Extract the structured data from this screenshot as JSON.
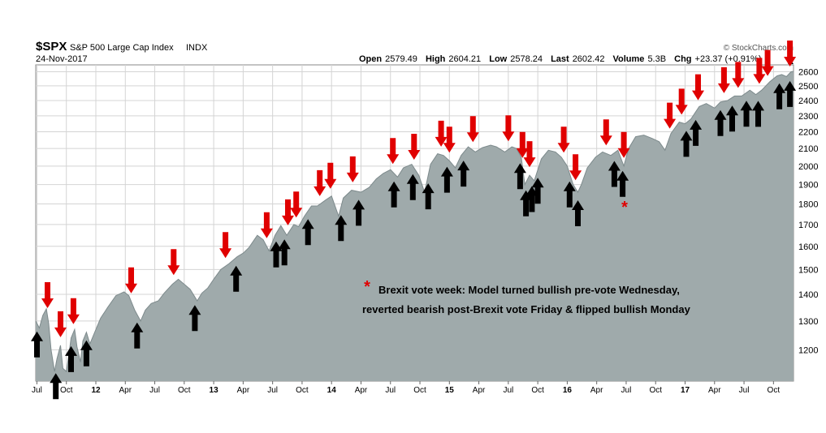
{
  "header": {
    "symbol": "$SPX",
    "name": "S&P 500 Large Cap Index",
    "exchange": "INDX",
    "date": "24-Nov-2017",
    "brand": "© StockCharts.com",
    "quote": [
      {
        "label": "Open",
        "value": "2579.49"
      },
      {
        "label": "High",
        "value": "2604.21"
      },
      {
        "label": "Low",
        "value": "2578.24"
      },
      {
        "label": "Last",
        "value": "2602.42"
      },
      {
        "label": "Volume",
        "value": "5.3B"
      },
      {
        "label": "Chg",
        "value": "+23.37 (+0.91%)"
      }
    ]
  },
  "annotation": {
    "marker": "*",
    "line1": "Brexit vote week: Model turned bullish pre-vote Wednesday,",
    "line2": "reverted bearish post-Brexit vote Friday & flipped bullish Monday"
  },
  "colors": {
    "area_fill": "#9faaab",
    "area_line": "#7d8a8c",
    "grid": "#d4d4d4",
    "sell_arrow": "#e00000",
    "buy_arrow": "#000000"
  },
  "chart_data": {
    "type": "area",
    "scale": "log",
    "ylim": [
      1100,
      2650
    ],
    "xlim": [
      2011.49,
      2017.92
    ],
    "yticks": [
      1200,
      1300,
      1400,
      1500,
      1600,
      1700,
      1800,
      1900,
      2000,
      2100,
      2200,
      2300,
      2400,
      2500,
      2600
    ],
    "xticks": [
      {
        "label": "Jul",
        "x": 2011.5
      },
      {
        "label": "Oct",
        "x": 2011.75
      },
      {
        "label": "12",
        "x": 2012.0,
        "year": true
      },
      {
        "label": "Apr",
        "x": 2012.25
      },
      {
        "label": "Jul",
        "x": 2012.5
      },
      {
        "label": "Oct",
        "x": 2012.75
      },
      {
        "label": "13",
        "x": 2013.0,
        "year": true
      },
      {
        "label": "Apr",
        "x": 2013.25
      },
      {
        "label": "Jul",
        "x": 2013.5
      },
      {
        "label": "Oct",
        "x": 2013.75
      },
      {
        "label": "14",
        "x": 2014.0,
        "year": true
      },
      {
        "label": "Apr",
        "x": 2014.25
      },
      {
        "label": "Jul",
        "x": 2014.5
      },
      {
        "label": "Oct",
        "x": 2014.75
      },
      {
        "label": "15",
        "x": 2015.0,
        "year": true
      },
      {
        "label": "Apr",
        "x": 2015.25
      },
      {
        "label": "Jul",
        "x": 2015.5
      },
      {
        "label": "Oct",
        "x": 2015.75
      },
      {
        "label": "16",
        "x": 2016.0,
        "year": true
      },
      {
        "label": "Apr",
        "x": 2016.25
      },
      {
        "label": "Jul",
        "x": 2016.5
      },
      {
        "label": "Oct",
        "x": 2016.75
      },
      {
        "label": "17",
        "x": 2017.0,
        "year": true
      },
      {
        "label": "Apr",
        "x": 2017.25
      },
      {
        "label": "Jul",
        "x": 2017.5
      },
      {
        "label": "Oct",
        "x": 2017.75
      }
    ],
    "series": [
      {
        "points": [
          [
            2011.49,
            1300
          ],
          [
            2011.52,
            1275
          ],
          [
            2011.55,
            1320
          ],
          [
            2011.58,
            1345
          ],
          [
            2011.6,
            1290
          ],
          [
            2011.62,
            1200
          ],
          [
            2011.65,
            1130
          ],
          [
            2011.67,
            1170
          ],
          [
            2011.7,
            1215
          ],
          [
            2011.72,
            1140
          ],
          [
            2011.75,
            1130
          ],
          [
            2011.77,
            1180
          ],
          [
            2011.79,
            1240
          ],
          [
            2011.82,
            1270
          ],
          [
            2011.84,
            1210
          ],
          [
            2011.87,
            1160
          ],
          [
            2011.89,
            1230
          ],
          [
            2011.92,
            1260
          ],
          [
            2011.95,
            1220
          ],
          [
            2011.99,
            1260
          ],
          [
            2012.04,
            1310
          ],
          [
            2012.1,
            1350
          ],
          [
            2012.17,
            1395
          ],
          [
            2012.24,
            1410
          ],
          [
            2012.28,
            1395
          ],
          [
            2012.33,
            1340
          ],
          [
            2012.38,
            1300
          ],
          [
            2012.42,
            1340
          ],
          [
            2012.47,
            1365
          ],
          [
            2012.53,
            1375
          ],
          [
            2012.58,
            1405
          ],
          [
            2012.65,
            1440
          ],
          [
            2012.7,
            1460
          ],
          [
            2012.75,
            1440
          ],
          [
            2012.8,
            1420
          ],
          [
            2012.86,
            1375
          ],
          [
            2012.9,
            1405
          ],
          [
            2012.95,
            1425
          ],
          [
            2013.0,
            1460
          ],
          [
            2013.06,
            1500
          ],
          [
            2013.13,
            1525
          ],
          [
            2013.2,
            1555
          ],
          [
            2013.25,
            1570
          ],
          [
            2013.3,
            1595
          ],
          [
            2013.37,
            1650
          ],
          [
            2013.42,
            1630
          ],
          [
            2013.47,
            1580
          ],
          [
            2013.52,
            1650
          ],
          [
            2013.57,
            1695
          ],
          [
            2013.62,
            1650
          ],
          [
            2013.68,
            1700
          ],
          [
            2013.72,
            1690
          ],
          [
            2013.77,
            1740
          ],
          [
            2013.83,
            1790
          ],
          [
            2013.88,
            1790
          ],
          [
            2013.95,
            1820
          ],
          [
            2014.0,
            1840
          ],
          [
            2014.06,
            1740
          ],
          [
            2014.1,
            1830
          ],
          [
            2014.17,
            1870
          ],
          [
            2014.25,
            1860
          ],
          [
            2014.32,
            1885
          ],
          [
            2014.38,
            1930
          ],
          [
            2014.44,
            1960
          ],
          [
            2014.5,
            1980
          ],
          [
            2014.56,
            1940
          ],
          [
            2014.61,
            1990
          ],
          [
            2014.68,
            2010
          ],
          [
            2014.74,
            1950
          ],
          [
            2014.79,
            1860
          ],
          [
            2014.84,
            2010
          ],
          [
            2014.9,
            2070
          ],
          [
            2014.95,
            2060
          ],
          [
            2015.0,
            2030
          ],
          [
            2015.05,
            1990
          ],
          [
            2015.1,
            2060
          ],
          [
            2015.16,
            2110
          ],
          [
            2015.22,
            2080
          ],
          [
            2015.28,
            2105
          ],
          [
            2015.35,
            2120
          ],
          [
            2015.4,
            2110
          ],
          [
            2015.47,
            2080
          ],
          [
            2015.53,
            2110
          ],
          [
            2015.57,
            2100
          ],
          [
            2015.61,
            2050
          ],
          [
            2015.64,
            1900
          ],
          [
            2015.68,
            1950
          ],
          [
            2015.72,
            1920
          ],
          [
            2015.78,
            2040
          ],
          [
            2015.84,
            2090
          ],
          [
            2015.9,
            2080
          ],
          [
            2015.95,
            2050
          ],
          [
            2016.0,
            2000
          ],
          [
            2016.05,
            1900
          ],
          [
            2016.09,
            1860
          ],
          [
            2016.12,
            1900
          ],
          [
            2016.17,
            1990
          ],
          [
            2016.24,
            2050
          ],
          [
            2016.3,
            2080
          ],
          [
            2016.37,
            2060
          ],
          [
            2016.43,
            2090
          ],
          [
            2016.48,
            2000
          ],
          [
            2016.52,
            2100
          ],
          [
            2016.58,
            2170
          ],
          [
            2016.65,
            2180
          ],
          [
            2016.72,
            2160
          ],
          [
            2016.78,
            2140
          ],
          [
            2016.83,
            2090
          ],
          [
            2016.88,
            2190
          ],
          [
            2016.95,
            2260
          ],
          [
            2017.0,
            2250
          ],
          [
            2017.05,
            2280
          ],
          [
            2017.12,
            2360
          ],
          [
            2017.18,
            2380
          ],
          [
            2017.25,
            2350
          ],
          [
            2017.3,
            2390
          ],
          [
            2017.36,
            2400
          ],
          [
            2017.42,
            2430
          ],
          [
            2017.48,
            2430
          ],
          [
            2017.55,
            2470
          ],
          [
            2017.6,
            2440
          ],
          [
            2017.65,
            2470
          ],
          [
            2017.72,
            2530
          ],
          [
            2017.78,
            2570
          ],
          [
            2017.82,
            2580
          ],
          [
            2017.86,
            2565
          ],
          [
            2017.9,
            2600
          ],
          [
            2017.92,
            2602
          ]
        ]
      }
    ],
    "sell_signals_x": [
      2011.59,
      2011.7,
      2011.81,
      2012.3,
      2012.66,
      2013.1,
      2013.45,
      2013.63,
      2013.7,
      2013.9,
      2013.99,
      2014.18,
      2014.52,
      2014.7,
      2014.93,
      2015.0,
      2015.2,
      2015.5,
      2015.62,
      2015.68,
      2015.97,
      2016.07,
      2016.33,
      2016.48,
      2016.87,
      2016.97,
      2017.11,
      2017.33,
      2017.45,
      2017.63,
      2017.7,
      2017.89
    ],
    "buy_signals_x": [
      2011.5,
      2011.66,
      2011.79,
      2011.92,
      2012.35,
      2012.84,
      2013.19,
      2013.53,
      2013.6,
      2013.8,
      2014.08,
      2014.23,
      2014.53,
      2014.69,
      2014.82,
      2014.98,
      2015.12,
      2015.6,
      2015.65,
      2015.7,
      2015.75,
      2016.02,
      2016.09,
      2016.4,
      2016.47,
      2017.01,
      2017.09,
      2017.3,
      2017.4,
      2017.52,
      2017.62,
      2017.8,
      2017.89
    ]
  }
}
